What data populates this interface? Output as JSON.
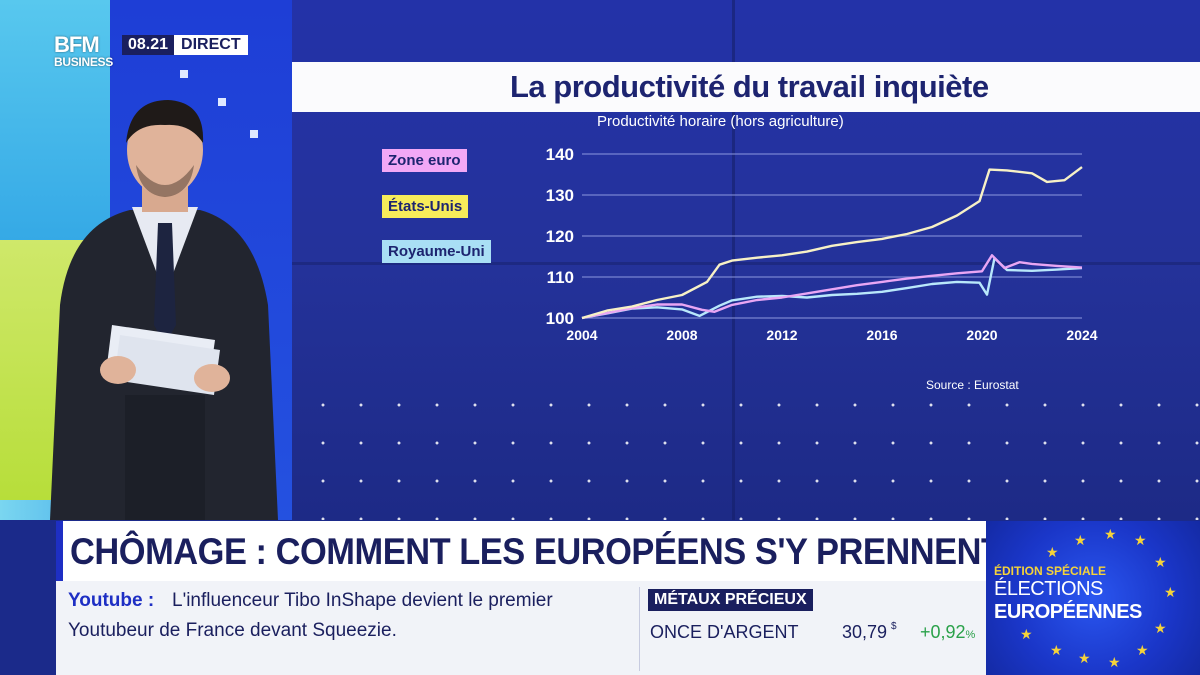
{
  "broadcast": {
    "logo_main": "BFM",
    "logo_sub": "BUSINESS",
    "time": "08.21",
    "live_label": "DIRECT"
  },
  "graphic": {
    "title": "La productivité du travail inquiète",
    "subtitle": "Productivité horaire (hors agriculture)",
    "source": "Source : Eurostat"
  },
  "chart_data": {
    "type": "line",
    "title": "La productivité du travail inquiète",
    "subtitle": "Productivité horaire (hors agriculture)",
    "xlabel": "",
    "ylabel": "",
    "xlim": [
      2004,
      2024
    ],
    "ylim": [
      100,
      140
    ],
    "x_ticks": [
      2004,
      2008,
      2012,
      2016,
      2020,
      2024
    ],
    "y_ticks": [
      100,
      110,
      120,
      130,
      140
    ],
    "grid": true,
    "legend_position": "left",
    "series": [
      {
        "name": "Zone euro",
        "color": "#e9a6f4",
        "points": [
          [
            2004,
            100
          ],
          [
            2005,
            101.2
          ],
          [
            2006,
            102.4
          ],
          [
            2007,
            103.3
          ],
          [
            2008,
            103.3
          ],
          [
            2008.8,
            102.0
          ],
          [
            2009.3,
            101.5
          ],
          [
            2010,
            103.2
          ],
          [
            2011,
            104.4
          ],
          [
            2012,
            105.0
          ],
          [
            2013,
            106.0
          ],
          [
            2014,
            107.0
          ],
          [
            2015,
            108.0
          ],
          [
            2016,
            108.8
          ],
          [
            2017,
            109.6
          ],
          [
            2018,
            110.3
          ],
          [
            2019,
            110.9
          ],
          [
            2020,
            111.4
          ],
          [
            2020.4,
            115.3
          ],
          [
            2020.9,
            112.2
          ],
          [
            2021.5,
            113.6
          ],
          [
            2022,
            113.2
          ],
          [
            2023,
            112.7
          ],
          [
            2024,
            112.3
          ]
        ]
      },
      {
        "name": "États-Unis",
        "color": "#f7f1c6",
        "points": [
          [
            2004,
            100
          ],
          [
            2005,
            101.8
          ],
          [
            2006,
            102.8
          ],
          [
            2007,
            104.4
          ],
          [
            2008,
            105.6
          ],
          [
            2009,
            108.8
          ],
          [
            2009.5,
            113.0
          ],
          [
            2010,
            114.0
          ],
          [
            2011,
            114.7
          ],
          [
            2012,
            115.3
          ],
          [
            2013,
            116.2
          ],
          [
            2014,
            117.6
          ],
          [
            2015,
            118.5
          ],
          [
            2016,
            119.3
          ],
          [
            2017,
            120.5
          ],
          [
            2018,
            122.2
          ],
          [
            2019,
            125.0
          ],
          [
            2019.9,
            128.5
          ],
          [
            2020.3,
            136.2
          ],
          [
            2021,
            136.0
          ],
          [
            2022,
            135.3
          ],
          [
            2022.6,
            133.2
          ],
          [
            2023.3,
            133.6
          ],
          [
            2024,
            136.8
          ]
        ]
      },
      {
        "name": "Royaume-Uni",
        "color": "#b9e8fb",
        "points": [
          [
            2004,
            100
          ],
          [
            2005,
            101.1
          ],
          [
            2006,
            102.3
          ],
          [
            2007,
            102.6
          ],
          [
            2008,
            102.1
          ],
          [
            2008.7,
            100.5
          ],
          [
            2009.5,
            103.0
          ],
          [
            2010,
            104.3
          ],
          [
            2011,
            105.2
          ],
          [
            2012,
            105.4
          ],
          [
            2013,
            105.0
          ],
          [
            2014,
            105.6
          ],
          [
            2015,
            105.9
          ],
          [
            2016,
            106.4
          ],
          [
            2017,
            107.3
          ],
          [
            2018,
            108.3
          ],
          [
            2019,
            108.8
          ],
          [
            2019.9,
            108.6
          ],
          [
            2020.2,
            105.7
          ],
          [
            2020.5,
            114.6
          ],
          [
            2021,
            111.7
          ],
          [
            2022,
            111.5
          ],
          [
            2023,
            111.8
          ],
          [
            2024,
            112.2
          ]
        ]
      }
    ]
  },
  "banner": {
    "headline": "CHÔMAGE : COMMENT LES EUROPÉENS S'Y PRENNENT ?",
    "news_source": "Youtube :",
    "news_line1": "L'influenceur Tibo InShape devient le premier",
    "news_line2": "Youtubeur de France devant Squeezie.",
    "market_category": "MÉTAUX PRÉCIEUX",
    "market_name": "ONCE D'ARGENT",
    "market_value": "30,79",
    "market_unit": "$",
    "market_change": "+0,92",
    "market_change_unit": "%",
    "special_line1": "ÉDITION SPÉCIALE",
    "special_line2": "ÉLECTIONS",
    "special_line3": "EUROPÉENNES"
  },
  "colors": {
    "brand_navy": "#1a1f5e",
    "accent_blue": "#1e2fc4",
    "positive_green": "#2aa14a",
    "eu_star_yellow": "#f5d33a"
  }
}
